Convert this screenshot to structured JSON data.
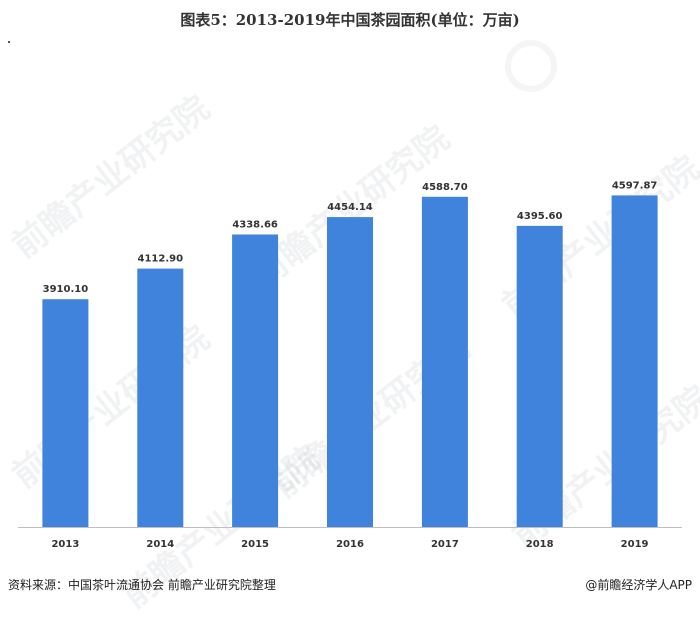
{
  "header": {
    "title": "图表5：2013-2019年中国茶园面积(单位：万亩)"
  },
  "footer": {
    "source": "资料来源：中国茶叶流通协会 前瞻产业研究院整理",
    "brand": "@前瞻经济学人APP"
  },
  "watermark": {
    "text": "前瞻产业研究院"
  },
  "colors": {
    "bar": "#3f83dc",
    "axis": "#bfbfbf",
    "label": "#333333"
  },
  "chart_data": {
    "type": "bar",
    "title": "图表5：2013-2019年中国茶园面积(单位：万亩)",
    "categories": [
      "2013",
      "2014",
      "2015",
      "2016",
      "2017",
      "2018",
      "2019"
    ],
    "values": [
      3910.1,
      4112.9,
      4338.66,
      4454.14,
      4588.7,
      4395.6,
      4597.87
    ],
    "labels": [
      "3910.10",
      "4112.90",
      "4338.66",
      "4454.14",
      "4588.70",
      "4395.60",
      "4597.87"
    ],
    "ylim": [
      2400,
      4700
    ],
    "grid": false,
    "legend": "none"
  }
}
